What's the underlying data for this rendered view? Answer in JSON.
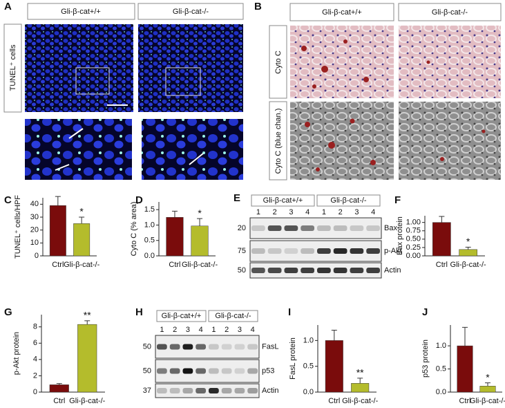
{
  "panels": {
    "A": {
      "letter": "A",
      "headers": [
        "Gli-β-cat+/+",
        "Gli-β-cat-/-"
      ],
      "row_label": "TUNEL⁺ cells"
    },
    "B": {
      "letter": "B",
      "headers": [
        "Gli-β-cat+/+",
        "Gli-β-cat-/-"
      ],
      "row_labels": [
        "Cyto C",
        "Cyto C (blue chan.)"
      ]
    },
    "E": {
      "letter": "E",
      "groups": [
        "Gli-β-cat+/+",
        "Gli-β-cat-/-"
      ],
      "lanes": [
        "1",
        "2",
        "3",
        "4"
      ],
      "mw": [
        "20",
        "75",
        "50"
      ],
      "bands": [
        "Bax",
        "p-Akt",
        "Actin"
      ]
    },
    "H": {
      "letter": "H",
      "groups": [
        "Gli-β-cat+/+",
        "Gli-β-cat-/-"
      ],
      "lanes": [
        "1",
        "2",
        "3",
        "4"
      ],
      "mw": [
        "50",
        "50",
        "37"
      ],
      "bands": [
        "FasL",
        "p53",
        "Actin"
      ]
    }
  },
  "chart_data": [
    {
      "type": "bar",
      "letter": "C",
      "ylabel": "TUNEL⁺ cells/HPF",
      "categories": [
        "Ctrl",
        "Gli-β-cat-/-"
      ],
      "values": [
        39,
        25
      ],
      "errors": [
        7,
        5
      ],
      "colors": [
        "#7a0c0c",
        "#b4bc2c"
      ],
      "annotation": "*",
      "ylim": [
        0,
        45
      ],
      "yticks": [
        0,
        10,
        20,
        30,
        40
      ]
    },
    {
      "type": "bar",
      "letter": "D",
      "ylabel": "Cyto C (% area)",
      "categories": [
        "Ctrl",
        "Gli-β-cat-/-"
      ],
      "values": [
        1.25,
        0.97
      ],
      "errors": [
        0.2,
        0.24
      ],
      "colors": [
        "#7a0c0c",
        "#b4bc2c"
      ],
      "annotation": "*",
      "ylim": [
        0,
        1.75
      ],
      "yticks": [
        {
          "value": 0,
          "label": "0.0"
        },
        0.5,
        {
          "value": 1,
          "label": "1.0"
        },
        1.5
      ]
    },
    {
      "type": "bar",
      "letter": "F",
      "ylabel": "Bax protein",
      "categories": [
        "Ctrl",
        "Gli-β-cat-/-"
      ],
      "values": [
        1.0,
        0.19
      ],
      "errors": [
        0.18,
        0.07
      ],
      "colors": [
        "#7a0c0c",
        "#b4bc2c"
      ],
      "annotation": "*",
      "ylim": [
        0,
        1.2
      ],
      "yticks": [
        {
          "value": 0,
          "label": "0.00"
        },
        0.25,
        {
          "value": 0.5,
          "label": "0.50"
        },
        0.75,
        {
          "value": 1,
          "label": "1.00"
        }
      ]
    },
    {
      "type": "bar",
      "letter": "G",
      "ylabel": "p-Akt protein",
      "categories": [
        "Ctrl",
        "Gli-β-cat-/-"
      ],
      "values": [
        0.9,
        8.3
      ],
      "errors": [
        0.15,
        0.45
      ],
      "colors": [
        "#7a0c0c",
        "#b4bc2c"
      ],
      "annotation": "**",
      "ylim": [
        0,
        9.5
      ],
      "yticks": [
        0,
        2,
        4,
        6,
        8
      ]
    },
    {
      "type": "bar",
      "letter": "I",
      "ylabel": "FasL protein",
      "categories": [
        "Ctrl",
        "Gli-β-cat-/-"
      ],
      "values": [
        1.0,
        0.17
      ],
      "errors": [
        0.2,
        0.1
      ],
      "colors": [
        "#7a0c0c",
        "#b4bc2c"
      ],
      "annotation": "**",
      "ylim": [
        0,
        1.3
      ],
      "yticks": [
        {
          "value": 0,
          "label": "0.0"
        },
        0.5,
        {
          "value": 1,
          "label": "1.0"
        }
      ]
    },
    {
      "type": "bar",
      "letter": "J",
      "ylabel": "p53 protein",
      "categories": [
        "Ctrl",
        "Gli-β-cat-/-"
      ],
      "values": [
        1.0,
        0.13
      ],
      "errors": [
        0.4,
        0.07
      ],
      "colors": [
        "#7a0c0c",
        "#b4bc2c"
      ],
      "annotation": "*",
      "ylim": [
        0,
        1.45
      ],
      "yticks": [
        {
          "value": 0,
          "label": "0.0"
        },
        0.5,
        {
          "value": 1,
          "label": "1.0"
        }
      ]
    }
  ]
}
